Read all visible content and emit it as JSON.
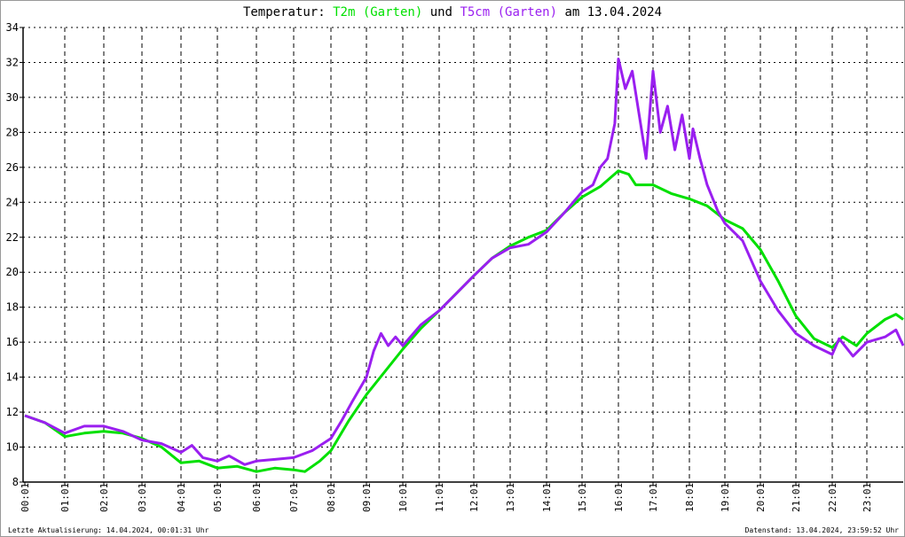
{
  "chart_data": {
    "type": "line",
    "title": {
      "prefix": "Temperatur:",
      "series1": "T2m (Garten)",
      "mid": "und",
      "series2": "T5cm (Garten)",
      "suffix": "am 13.04.2024"
    },
    "xlabel": "",
    "ylabel": "",
    "ylim": [
      8,
      34
    ],
    "yticks": [
      "8",
      "10",
      "12",
      "14",
      "16",
      "18",
      "20",
      "22",
      "24",
      "26",
      "28",
      "30",
      "32",
      "34"
    ],
    "xticks": [
      "00:01",
      "01:01",
      "02:01",
      "03:01",
      "04:01",
      "05:01",
      "06:01",
      "07:01",
      "08:01",
      "09:01",
      "10:01",
      "11:01",
      "12:01",
      "13:01",
      "14:01",
      "15:01",
      "16:01",
      "17:01",
      "18:01",
      "19:01",
      "20:01",
      "21:01",
      "22:01",
      "23:01"
    ],
    "grid": true,
    "series": [
      {
        "name": "T2m (Garten)",
        "color": "#00e000",
        "x": [
          0,
          0.5,
          1,
          1.5,
          2,
          2.5,
          3,
          3.5,
          4,
          4.5,
          5,
          5.5,
          6,
          6.5,
          7,
          7.3,
          7.7,
          8,
          8.5,
          9,
          9.5,
          10,
          10.5,
          11,
          11.5,
          12,
          12.5,
          13,
          13.5,
          14,
          14.5,
          15,
          15.5,
          16,
          16.3,
          16.5,
          17,
          17.5,
          18,
          18.5,
          19,
          19.5,
          20,
          20.5,
          21,
          21.5,
          22,
          22.3,
          22.7,
          23,
          23.5,
          23.8,
          24
        ],
        "y": [
          11.8,
          11.4,
          10.6,
          10.8,
          10.9,
          10.8,
          10.5,
          10.0,
          9.1,
          9.2,
          8.8,
          8.9,
          8.6,
          8.8,
          8.7,
          8.6,
          9.2,
          9.8,
          11.5,
          13.0,
          14.3,
          15.6,
          16.8,
          17.8,
          18.8,
          19.8,
          20.8,
          21.5,
          22.0,
          22.4,
          23.4,
          24.3,
          24.9,
          25.8,
          25.6,
          25.0,
          25.0,
          24.5,
          24.2,
          23.8,
          23.0,
          22.5,
          21.3,
          19.5,
          17.5,
          16.2,
          15.7,
          16.3,
          15.8,
          16.5,
          17.3,
          17.6,
          17.3
        ]
      },
      {
        "name": "T5cm (Garten)",
        "color": "#9a1ff0",
        "x": [
          0,
          0.5,
          1,
          1.5,
          2,
          2.5,
          3,
          3.5,
          4,
          4.3,
          4.6,
          5,
          5.3,
          5.7,
          6,
          6.5,
          7,
          7.5,
          8,
          8.3,
          8.6,
          9,
          9.2,
          9.4,
          9.6,
          9.8,
          10,
          10.5,
          11,
          11.5,
          12,
          12.5,
          13,
          13.5,
          14,
          14.5,
          15,
          15.3,
          15.5,
          15.7,
          15.9,
          16,
          16.2,
          16.4,
          16.6,
          16.8,
          17,
          17.2,
          17.4,
          17.6,
          17.8,
          18,
          18.1,
          18.3,
          18.5,
          18.8,
          19,
          19.5,
          20,
          20.5,
          21,
          21.5,
          22,
          22.2,
          22.6,
          23,
          23.5,
          23.8,
          24
        ],
        "y": [
          11.8,
          11.4,
          10.8,
          11.2,
          11.2,
          10.9,
          10.4,
          10.2,
          9.7,
          10.1,
          9.4,
          9.2,
          9.5,
          9.0,
          9.2,
          9.3,
          9.4,
          9.8,
          10.5,
          11.5,
          12.6,
          14.0,
          15.5,
          16.5,
          15.8,
          16.3,
          15.8,
          17.0,
          17.8,
          18.8,
          19.8,
          20.8,
          21.4,
          21.6,
          22.3,
          23.4,
          24.6,
          25.0,
          26.0,
          26.5,
          28.5,
          32.2,
          30.5,
          31.5,
          29.0,
          26.5,
          31.5,
          28.0,
          29.5,
          27.0,
          29.0,
          26.5,
          28.2,
          26.5,
          25.0,
          23.5,
          22.8,
          21.8,
          19.5,
          17.8,
          16.5,
          15.8,
          15.3,
          16.2,
          15.2,
          16.0,
          16.3,
          16.7,
          15.8
        ]
      }
    ]
  },
  "footer": {
    "last_update": "Letzte Aktualisierung: 14.04.2024, 00:01:31 Uhr",
    "data_state": "Datenstand: 13.04.2024, 23:59:52 Uhr"
  }
}
